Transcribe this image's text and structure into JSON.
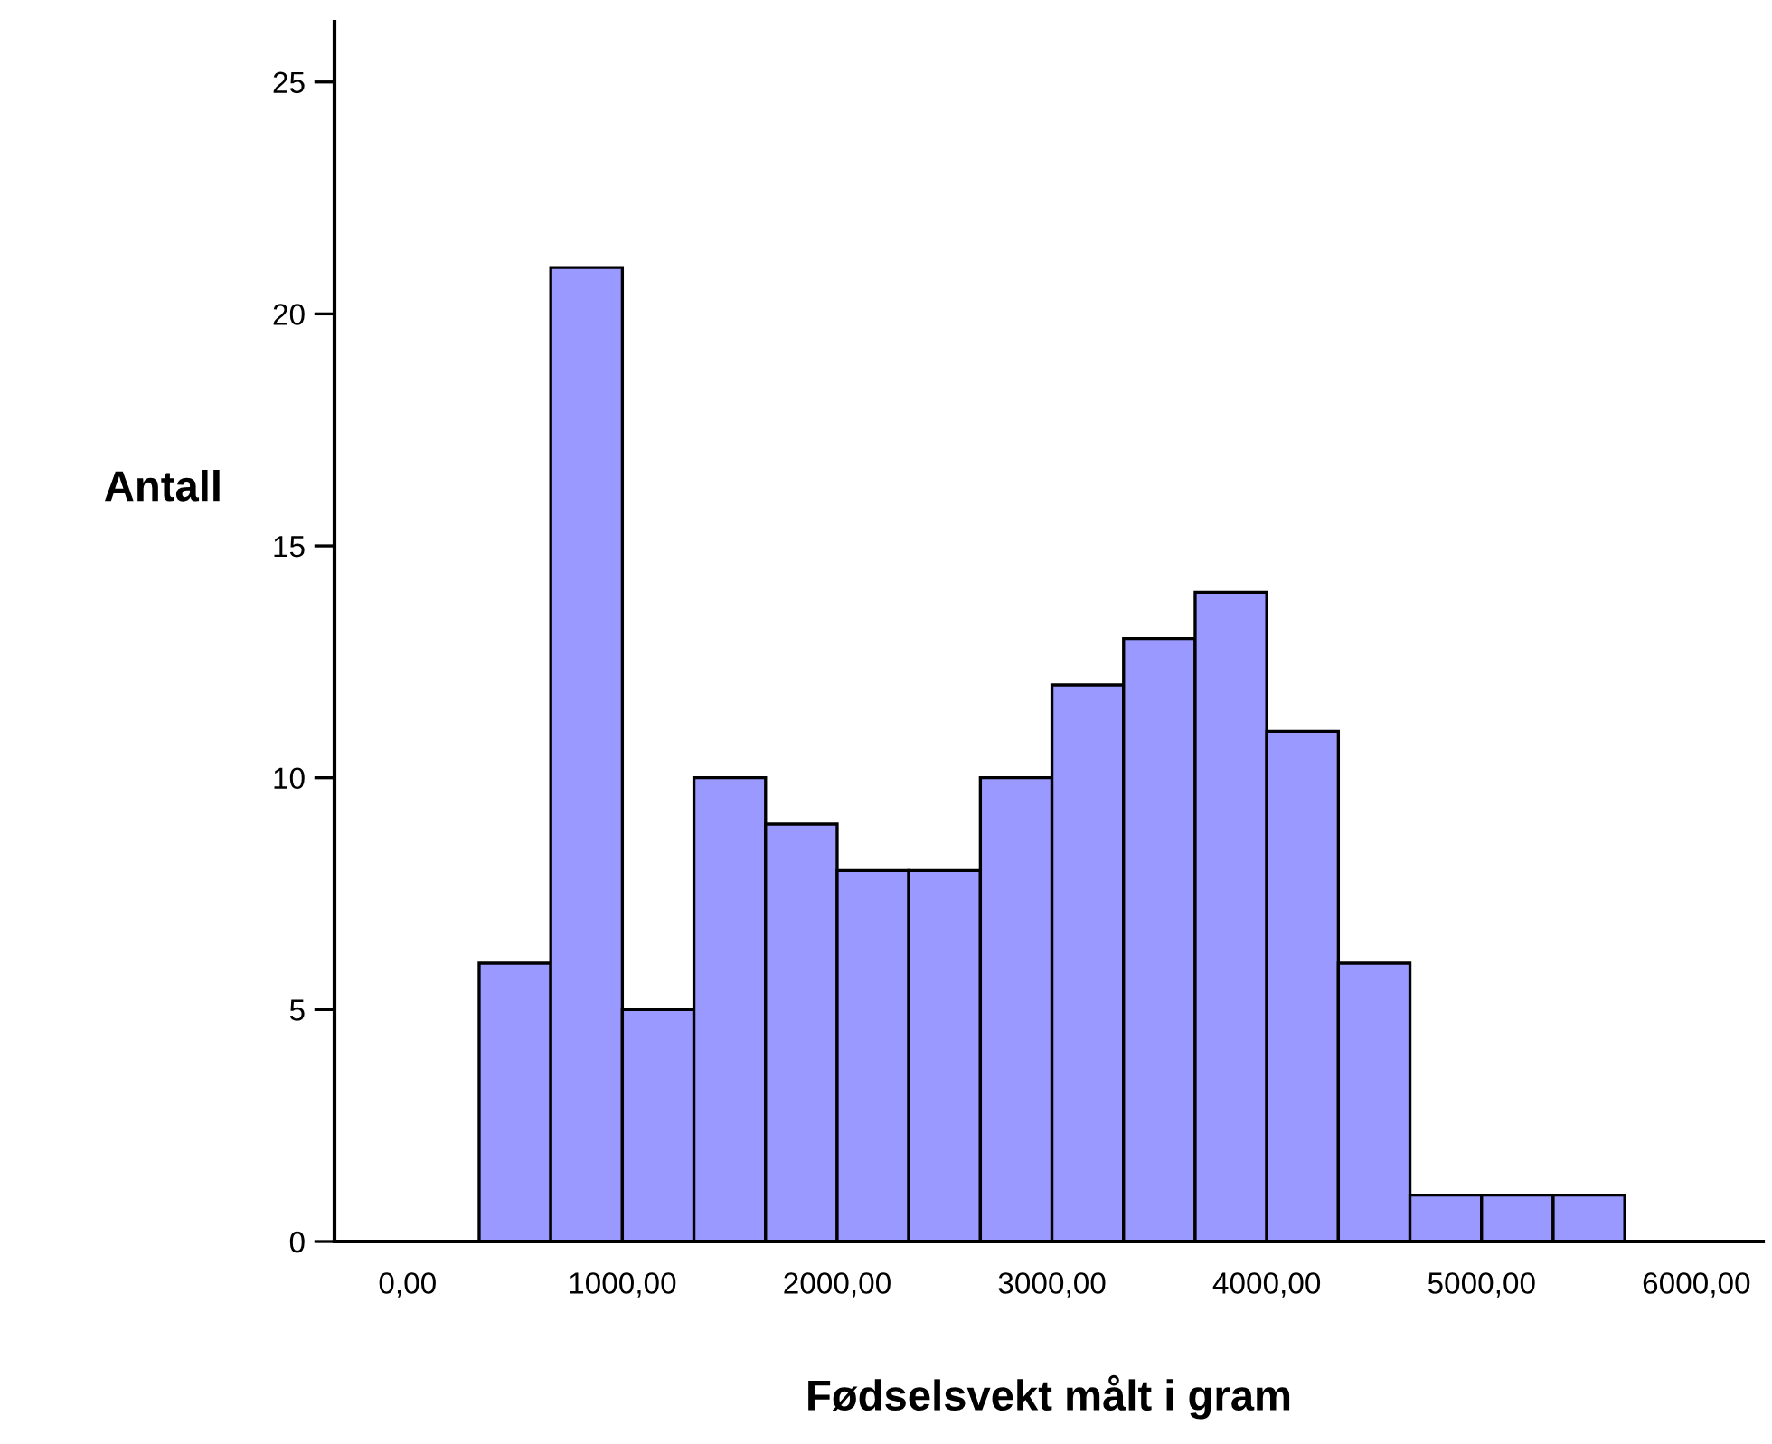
{
  "chart_data": {
    "type": "histogram",
    "xlabel": "Fødselsvekt målt i gram",
    "ylabel": "Antall",
    "bins": [
      333.33,
      666.67,
      1000,
      1333.33,
      1666.67,
      2000,
      2333.33,
      2666.67,
      3000,
      3333.33,
      3666.67,
      4000,
      4333.33,
      4666.67,
      5000,
      5333.33,
      5666.67
    ],
    "values": [
      6,
      21,
      5,
      10,
      9,
      8,
      8,
      10,
      12,
      13,
      14,
      11,
      6,
      1,
      1,
      1
    ],
    "color": "#9999ff",
    "xlim": [
      -340,
      6310
    ],
    "ylim": [
      0,
      26.3
    ],
    "xticks": [
      {
        "value": 0,
        "label": "0,00"
      },
      {
        "value": 1000,
        "label": "1000,00"
      },
      {
        "value": 2000,
        "label": "2000,00"
      },
      {
        "value": 3000,
        "label": "3000,00"
      },
      {
        "value": 4000,
        "label": "4000,00"
      },
      {
        "value": 5000,
        "label": "5000,00"
      },
      {
        "value": 6000,
        "label": "6000,00"
      }
    ],
    "yticks": [
      0,
      5,
      10,
      15,
      20,
      25
    ],
    "grid": false
  }
}
